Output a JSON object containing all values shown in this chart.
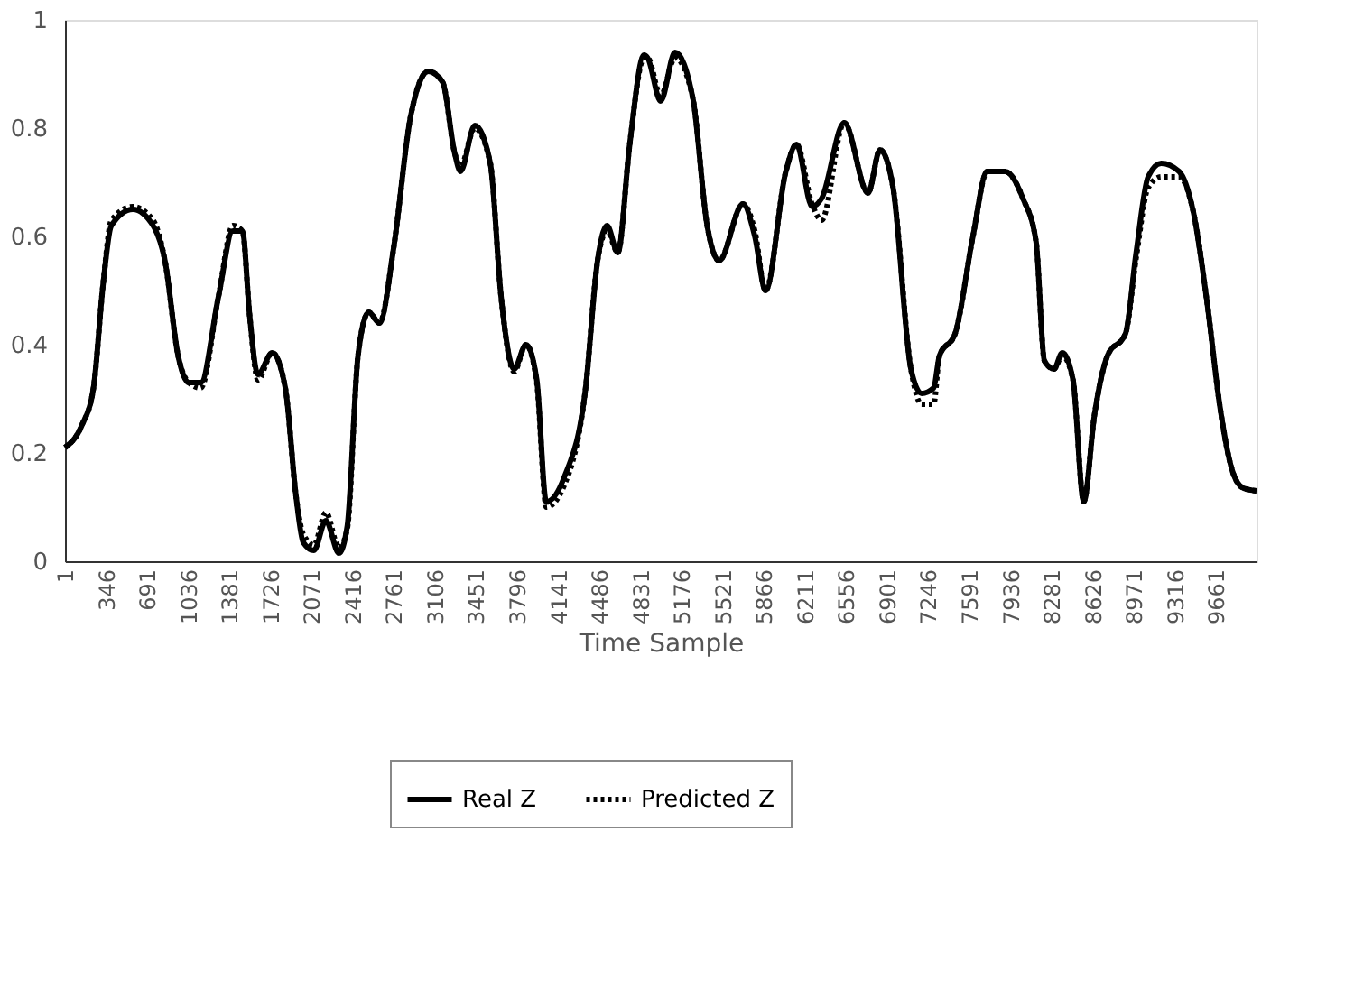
{
  "chart_data": {
    "type": "line",
    "xlabel": "Time Sample",
    "x": [
      1,
      140,
      240,
      320,
      390,
      570,
      740,
      840,
      950,
      1040,
      1140,
      1290,
      1410,
      1490,
      1550,
      1620,
      1740,
      1850,
      1940,
      2000,
      2090,
      2190,
      2300,
      2370,
      2460,
      2550,
      2640,
      2760,
      2900,
      3050,
      3170,
      3270,
      3320,
      3440,
      3570,
      3660,
      3770,
      3870,
      3960,
      4040,
      4190,
      4370,
      4470,
      4550,
      4640,
      4740,
      4860,
      4890,
      5000,
      5120,
      5270,
      5390,
      5490,
      5690,
      5790,
      5880,
      6050,
      6140,
      6270,
      6350,
      6540,
      6740,
      6840,
      6950,
      7100,
      7190,
      7290,
      7340,
      7470,
      7620,
      7740,
      7890,
      8040,
      8150,
      8220,
      8300,
      8370,
      8460,
      8550,
      8640,
      8750,
      8900,
      8990,
      9090,
      9200,
      9350,
      9470,
      9590,
      9690,
      9800,
      9890,
      10000
    ],
    "series": [
      {
        "name": "Real Z",
        "color": "#000000",
        "line_style": "solid",
        "values": [
          0.21,
          0.25,
          0.32,
          0.51,
          0.62,
          0.65,
          0.62,
          0.555,
          0.38,
          0.33,
          0.33,
          0.49,
          0.61,
          0.61,
          0.455,
          0.345,
          0.385,
          0.32,
          0.12,
          0.035,
          0.02,
          0.075,
          0.015,
          0.065,
          0.38,
          0.46,
          0.44,
          0.58,
          0.82,
          0.905,
          0.885,
          0.755,
          0.72,
          0.805,
          0.735,
          0.49,
          0.355,
          0.4,
          0.335,
          0.11,
          0.155,
          0.32,
          0.555,
          0.62,
          0.57,
          0.77,
          0.935,
          0.93,
          0.85,
          0.94,
          0.855,
          0.62,
          0.555,
          0.66,
          0.6,
          0.5,
          0.72,
          0.77,
          0.655,
          0.67,
          0.81,
          0.68,
          0.76,
          0.69,
          0.355,
          0.31,
          0.32,
          0.38,
          0.42,
          0.6,
          0.72,
          0.72,
          0.67,
          0.59,
          0.37,
          0.355,
          0.385,
          0.335,
          0.11,
          0.27,
          0.38,
          0.42,
          0.57,
          0.71,
          0.735,
          0.72,
          0.645,
          0.47,
          0.29,
          0.165,
          0.135,
          0.13
        ]
      },
      {
        "name": "Predicted Z",
        "color": "#000000",
        "line_style": "dotted",
        "values": [
          0.21,
          0.25,
          0.32,
          0.51,
          0.63,
          0.655,
          0.63,
          0.555,
          0.38,
          0.33,
          0.32,
          0.49,
          0.62,
          0.61,
          0.455,
          0.335,
          0.385,
          0.32,
          0.12,
          0.05,
          0.03,
          0.09,
          0.025,
          0.06,
          0.38,
          0.46,
          0.44,
          0.58,
          0.82,
          0.905,
          0.885,
          0.755,
          0.73,
          0.8,
          0.735,
          0.49,
          0.35,
          0.4,
          0.33,
          0.1,
          0.14,
          0.32,
          0.555,
          0.61,
          0.57,
          0.77,
          0.93,
          0.93,
          0.86,
          0.93,
          0.855,
          0.62,
          0.555,
          0.66,
          0.61,
          0.5,
          0.72,
          0.77,
          0.66,
          0.63,
          0.81,
          0.68,
          0.76,
          0.69,
          0.355,
          0.29,
          0.29,
          0.38,
          0.42,
          0.6,
          0.72,
          0.72,
          0.67,
          0.59,
          0.37,
          0.355,
          0.38,
          0.335,
          0.11,
          0.27,
          0.38,
          0.42,
          0.56,
          0.69,
          0.71,
          0.71,
          0.645,
          0.47,
          0.29,
          0.165,
          0.135,
          0.13
        ]
      }
    ],
    "xlim": [
      1,
      10000
    ],
    "xticks": [
      1,
      346,
      691,
      1036,
      1381,
      1726,
      2071,
      2416,
      2761,
      3106,
      3451,
      3796,
      4141,
      4486,
      4831,
      5176,
      5521,
      5866,
      6211,
      6556,
      6901,
      7246,
      7591,
      7936,
      8281,
      8626,
      8971,
      9316,
      9661
    ],
    "ylim": [
      0,
      1
    ],
    "yticks": [
      0,
      0.2,
      0.4,
      0.6,
      0.8,
      1
    ],
    "grid": false,
    "legend": "bottom",
    "marker": "none"
  }
}
